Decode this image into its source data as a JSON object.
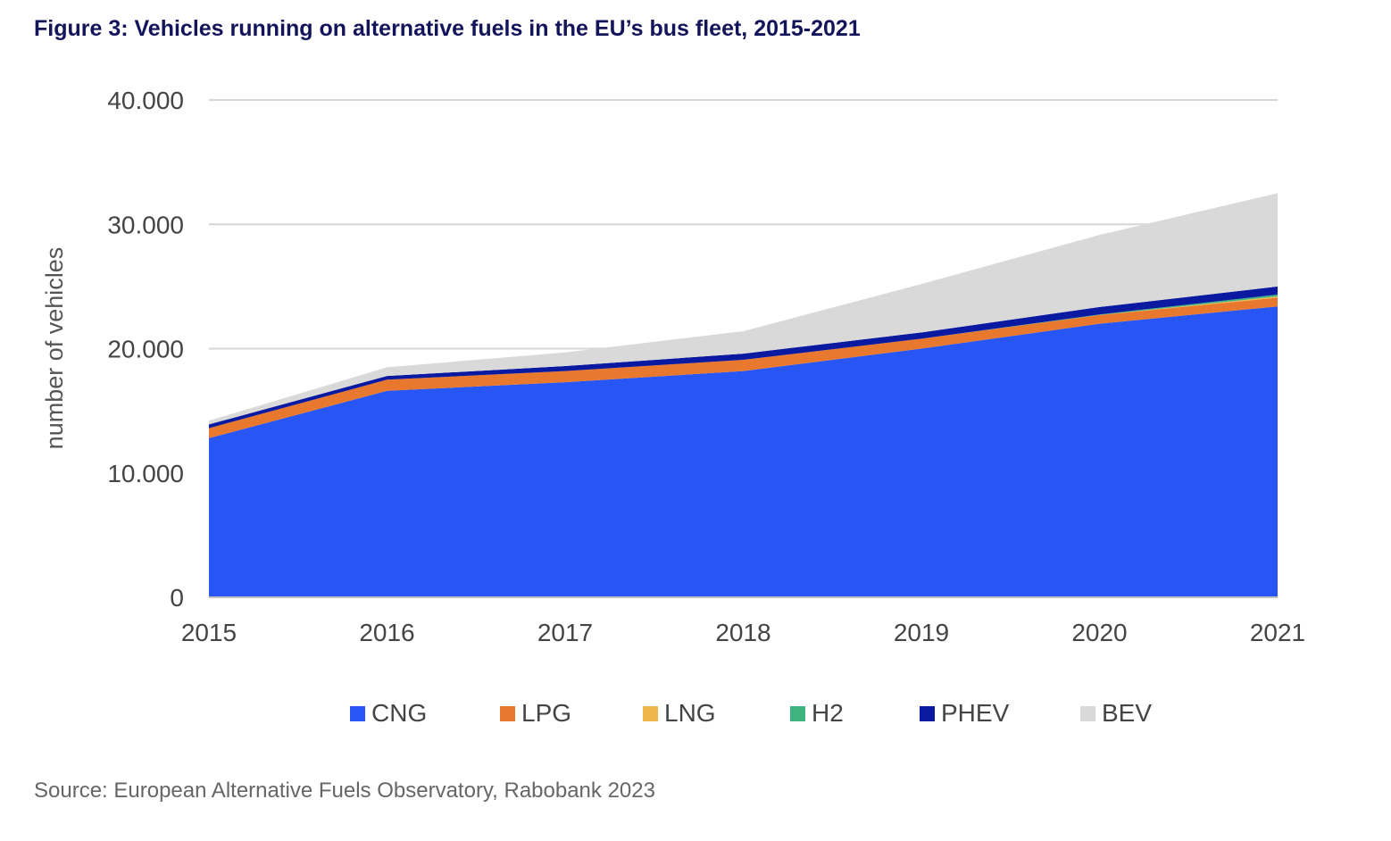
{
  "title": "Figure 3: Vehicles running on alternative fuels in the EU’s bus fleet, 2015-2021",
  "source": "Source: European Alternative Fuels Observatory, Rabobank 2023",
  "chart_data": {
    "type": "area",
    "stacked": true,
    "ylabel": "number of vehicles",
    "xlabel": "",
    "ylim": [
      0,
      40000
    ],
    "yticks": [
      0,
      10000,
      20000,
      30000,
      40000
    ],
    "ytick_labels": [
      "0",
      "10.000",
      "20.000",
      "30.000",
      "40.000"
    ],
    "x": [
      "2015",
      "2016",
      "2017",
      "2018",
      "2019",
      "2020",
      "2021"
    ],
    "grid": true,
    "legend_position": "bottom",
    "series": [
      {
        "name": "CNG",
        "color": "#2756f5",
        "values": [
          12800,
          16600,
          17300,
          18200,
          20000,
          22000,
          23400
        ]
      },
      {
        "name": "LPG",
        "color": "#e8782d",
        "values": [
          800,
          900,
          900,
          900,
          800,
          700,
          700
        ]
      },
      {
        "name": "LNG",
        "color": "#f0b64a",
        "values": [
          0,
          0,
          0,
          0,
          0,
          0,
          100
        ]
      },
      {
        "name": "H2",
        "color": "#3fb37f",
        "values": [
          0,
          0,
          0,
          0,
          0,
          50,
          150
        ]
      },
      {
        "name": "PHEV",
        "color": "#0a1aa0",
        "values": [
          300,
          300,
          400,
          500,
          500,
          600,
          650
        ]
      },
      {
        "name": "BEV",
        "color": "#d9d9d9",
        "values": [
          300,
          700,
          1100,
          1800,
          3900,
          5800,
          7500
        ]
      }
    ]
  }
}
